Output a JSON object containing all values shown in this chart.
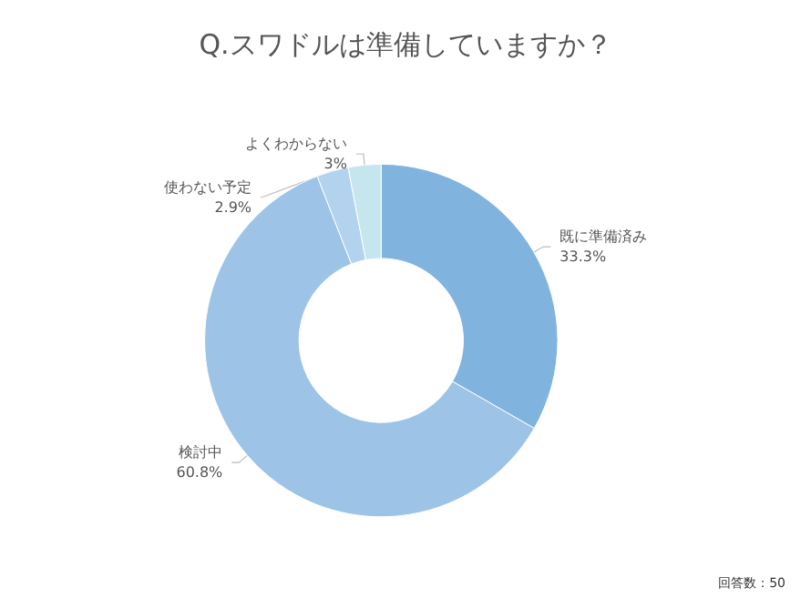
{
  "chart_data": {
    "type": "donut",
    "title": "Q.スワドルは準備していますか？",
    "categories": [
      "既に準備済み",
      "検討中",
      "使わない予定",
      "よくわからない"
    ],
    "values": [
      33.3,
      60.8,
      2.9,
      3
    ],
    "value_labels": [
      "33.3%",
      "60.8%",
      "2.9%",
      "3%"
    ],
    "colors": [
      "#80b3dd",
      "#9dc4e6",
      "#b3d2ee",
      "#c6e6ee"
    ],
    "legend": false,
    "annotations": [
      "回答数：50"
    ]
  }
}
